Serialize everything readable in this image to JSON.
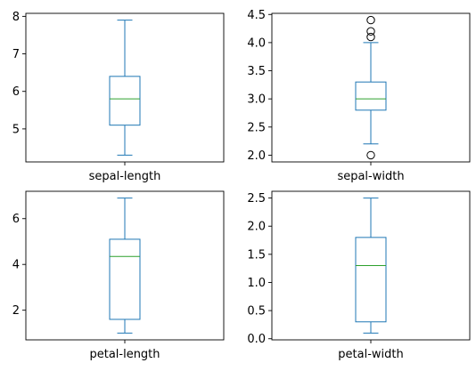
{
  "chart_data": [
    {
      "type": "box",
      "xlabel": "sepal-length",
      "ylim": [
        4.12,
        8.08
      ],
      "yticks": [
        5,
        6,
        7,
        8
      ],
      "box": {
        "whislo": 4.3,
        "q1": 5.1,
        "median": 5.8,
        "q3": 6.4,
        "whishi": 7.9,
        "fliers": []
      }
    },
    {
      "type": "box",
      "xlabel": "sepal-width",
      "ylim": [
        1.88,
        4.52
      ],
      "yticks": [
        2.0,
        2.5,
        3.0,
        3.5,
        4.0,
        4.5
      ],
      "box": {
        "whislo": 2.2,
        "q1": 2.8,
        "median": 3.0,
        "q3": 3.3,
        "whishi": 4.0,
        "fliers": [
          4.4,
          4.1,
          4.2,
          2.0
        ]
      }
    },
    {
      "type": "box",
      "xlabel": "petal-length",
      "ylim": [
        0.705,
        7.195
      ],
      "yticks": [
        2,
        4,
        6
      ],
      "box": {
        "whislo": 1.0,
        "q1": 1.6,
        "median": 4.35,
        "q3": 5.1,
        "whishi": 6.9,
        "fliers": []
      }
    },
    {
      "type": "box",
      "xlabel": "petal-width",
      "ylim": [
        -0.02,
        2.62
      ],
      "yticks": [
        0.0,
        0.5,
        1.0,
        1.5,
        2.0,
        2.5
      ],
      "box": {
        "whislo": 0.1,
        "q1": 0.3,
        "median": 1.3,
        "q3": 1.8,
        "whishi": 2.5,
        "fliers": []
      }
    }
  ],
  "colors": {
    "box": "#1f77b4",
    "median": "#2ca02c",
    "axes": "#000000"
  }
}
